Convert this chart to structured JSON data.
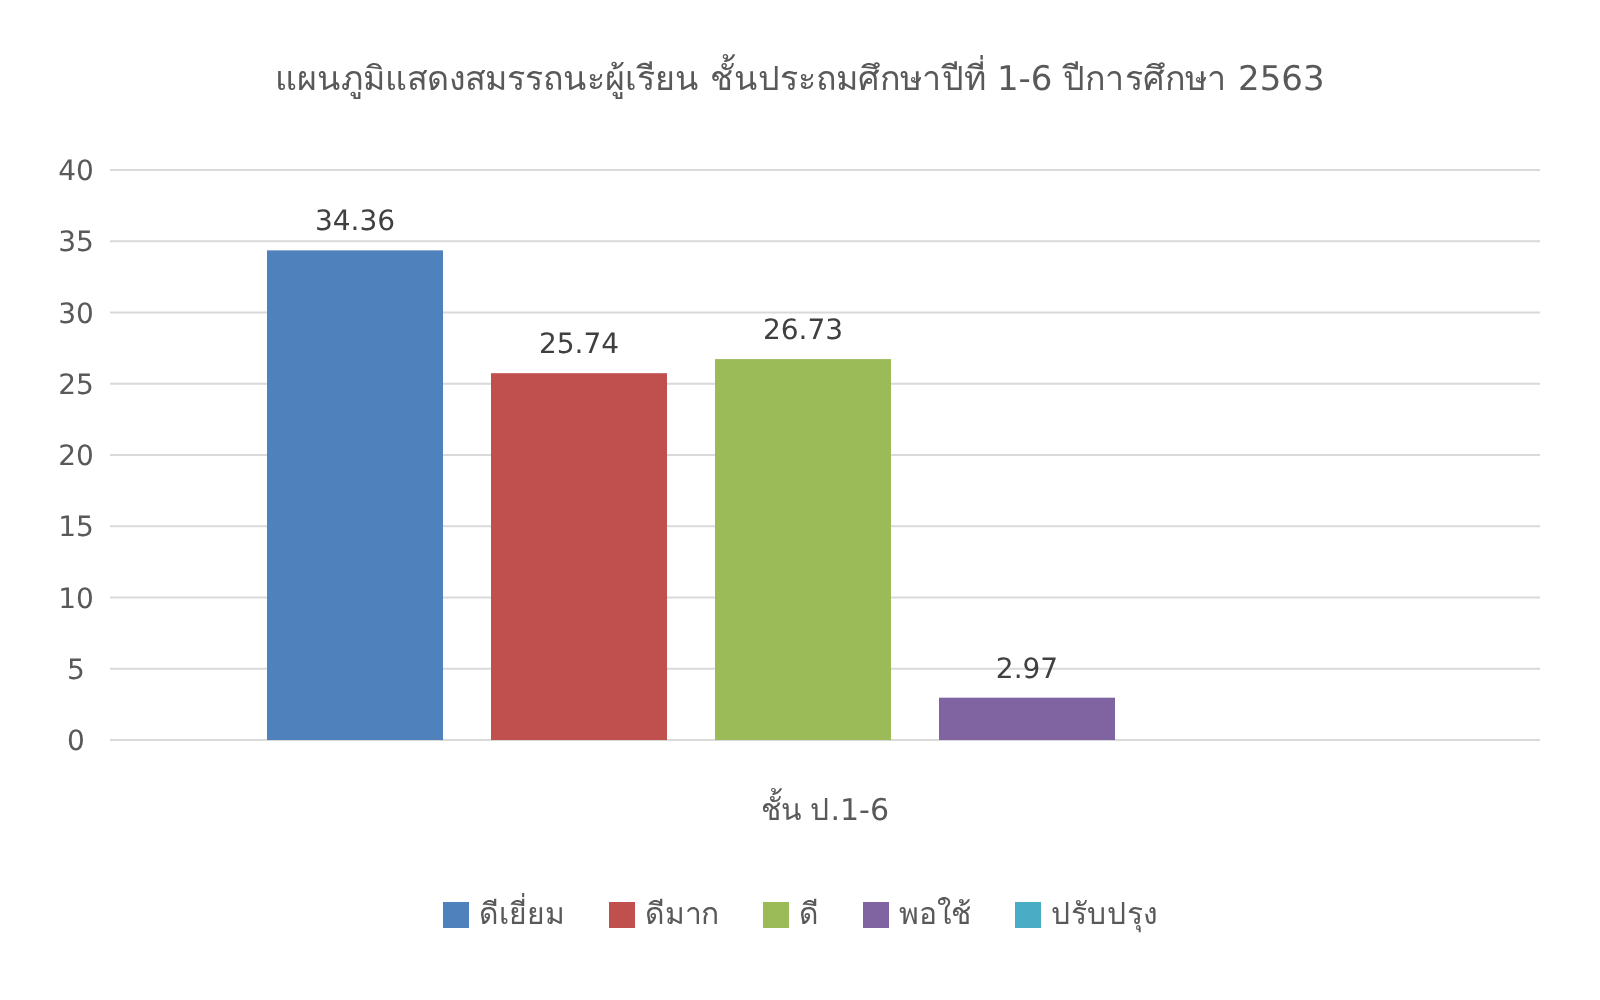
{
  "chart_data": {
    "type": "bar",
    "title": "แผนภูมิแสดงสมรรถนะผู้เรียน ชั้นประถมศึกษาปีที่ 1-6 ปีการศึกษา 2563",
    "categories": [
      "ชั้น ป.1-6"
    ],
    "series": [
      {
        "name": "ดีเยี่ยม",
        "color": "#4f81bd",
        "values": [
          34.36
        ],
        "value_labels": [
          "34.36"
        ]
      },
      {
        "name": "ดีมาก",
        "color": "#c0504d",
        "values": [
          25.74
        ],
        "value_labels": [
          "25.74"
        ]
      },
      {
        "name": "ดี",
        "color": "#9bbb59",
        "values": [
          26.73
        ],
        "value_labels": [
          "26.73"
        ]
      },
      {
        "name": "พอใช้",
        "color": "#8064a2",
        "values": [
          2.97
        ],
        "value_labels": [
          "2.97"
        ]
      },
      {
        "name": "ปรับปรุง",
        "color": "#4bacc6",
        "values": [
          0
        ],
        "value_labels": [
          null
        ]
      }
    ],
    "ylim": [
      0,
      40
    ],
    "yticks": [
      0,
      5,
      10,
      15,
      20,
      25,
      30,
      35,
      40
    ],
    "grid": "y",
    "legend": "bottom"
  }
}
